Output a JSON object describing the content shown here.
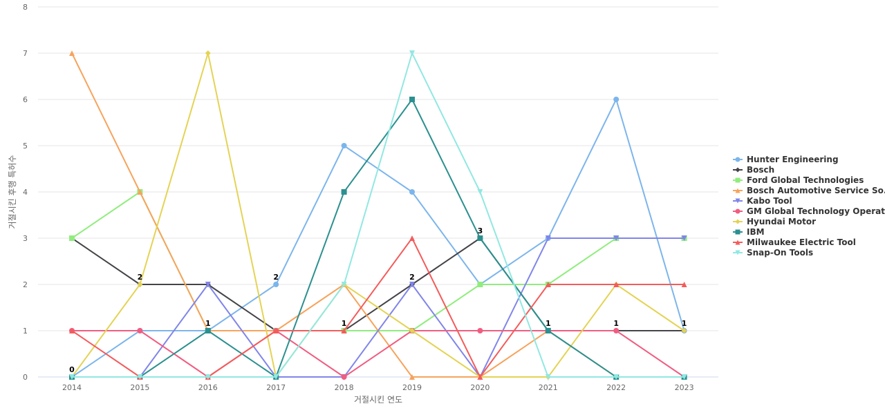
{
  "chart_data": {
    "type": "line",
    "title": "",
    "xlabel": "거절시킨 연도",
    "ylabel": "거절시킨 후행 특허수",
    "x": [
      "2014",
      "2015",
      "2016",
      "2017",
      "2018",
      "2019",
      "2020",
      "2021",
      "2022",
      "2023"
    ],
    "ylim": [
      0,
      8
    ],
    "yticks": [
      0,
      1,
      2,
      3,
      4,
      5,
      6,
      7,
      8
    ],
    "grid": true,
    "legend_position": "right",
    "series": [
      {
        "name": "Hunter Engineering",
        "color": "#7cb5ec",
        "marker": "circle",
        "values": [
          0,
          1,
          1,
          2,
          5,
          4,
          2,
          3,
          6,
          1
        ]
      },
      {
        "name": "Bosch",
        "color": "#434348",
        "marker": "diamond",
        "values": [
          3,
          2,
          2,
          1,
          1,
          2,
          3,
          1,
          1,
          1
        ]
      },
      {
        "name": "Ford Global Technologies",
        "color": "#90ed7d",
        "marker": "square",
        "values": [
          3,
          4,
          1,
          1,
          1,
          1,
          2,
          2,
          3,
          3
        ]
      },
      {
        "name": "Bosch Automotive Service So...",
        "color": "#f7a35c",
        "marker": "triangle",
        "values": [
          7,
          4,
          1,
          1,
          2,
          0,
          0,
          1,
          0,
          0
        ]
      },
      {
        "name": "Kabo Tool",
        "color": "#8085e9",
        "marker": "triangle-down",
        "values": [
          0,
          0,
          2,
          0,
          0,
          2,
          0,
          3,
          3,
          3
        ]
      },
      {
        "name": "GM Global Technology Operat...",
        "color": "#f15c80",
        "marker": "circle",
        "values": [
          1,
          1,
          0,
          1,
          0,
          1,
          1,
          1,
          1,
          0
        ]
      },
      {
        "name": "Hyundai Motor",
        "color": "#e4d354",
        "marker": "diamond",
        "values": [
          0,
          2,
          7,
          0,
          2,
          1,
          0,
          0,
          2,
          1
        ]
      },
      {
        "name": "IBM",
        "color": "#2b908f",
        "marker": "square",
        "values": [
          0,
          0,
          1,
          0,
          4,
          6,
          3,
          1,
          0,
          0
        ]
      },
      {
        "name": "Milwaukee Electric Tool",
        "color": "#f45b5b",
        "marker": "triangle",
        "values": [
          1,
          0,
          0,
          1,
          1,
          3,
          0,
          2,
          2,
          2
        ]
      },
      {
        "name": "Snap-On Tools",
        "color": "#91e8e1",
        "marker": "triangle-down",
        "values": [
          0,
          0,
          0,
          0,
          2,
          7,
          4,
          0,
          0,
          0
        ]
      }
    ],
    "data_labels": [
      0,
      1,
      2,
      0,
      1,
      1,
      1,
      1,
      1,
      0
    ]
  }
}
